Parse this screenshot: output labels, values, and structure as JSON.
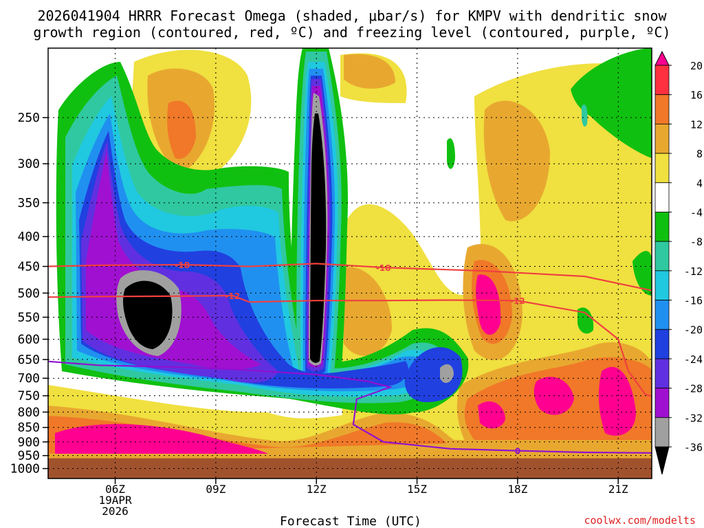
{
  "chart_data": {
    "type": "heatmap",
    "title_line1": "2026041904 HRRR Forecast Omega (shaded, μbar/s) for KMPV with dendritic snow",
    "title_line2": "growth region (contoured, red, ºC) and freezing level (contoured, purple, ºC)",
    "xlabel": "Forecast Time (UTC)",
    "credit": "coolwx.com/modelts",
    "x_ticks": [
      {
        "hour": 6,
        "label": "06Z",
        "sub1": "19APR",
        "sub2": "2026"
      },
      {
        "hour": 9,
        "label": "09Z"
      },
      {
        "hour": 12,
        "label": "12Z"
      },
      {
        "hour": 15,
        "label": "15Z"
      },
      {
        "hour": 18,
        "label": "18Z"
      },
      {
        "hour": 21,
        "label": "21Z"
      }
    ],
    "x_range_hours": [
      4.0,
      22.0
    ],
    "y_ticks": [
      250,
      300,
      350,
      400,
      450,
      500,
      550,
      600,
      650,
      700,
      750,
      800,
      850,
      900,
      950,
      1000
    ],
    "y_range_mb": [
      190,
      1040
    ],
    "surface_pressure_mb": 960,
    "colorbar": {
      "labels": [
        "20",
        "16",
        "12",
        "8",
        "4",
        "-4",
        "-8",
        "-12",
        "-16",
        "-20",
        "-24",
        "-28",
        "-32",
        "-36"
      ],
      "colors": [
        "#ff0090",
        "#ff3040",
        "#f07828",
        "#e8a830",
        "#f0e040",
        "#ffffff",
        "#10c010",
        "#30c8a0",
        "#20c8e0",
        "#2090f0",
        "#2040e0",
        "#6030e0",
        "#a010d0",
        "#a0a0a0",
        "#000000"
      ]
    },
    "omega_regions": [
      {
        "name": "upper-left-column",
        "value_range": [
          -36,
          -8
        ]
      },
      {
        "name": "12z-vertical-core",
        "value_range": [
          -36,
          -8
        ]
      },
      {
        "name": "low-level-positive-band",
        "value_range": [
          4,
          20
        ]
      },
      {
        "name": "right-side-positive",
        "value_range": [
          4,
          16
        ]
      }
    ],
    "contours": [
      {
        "name": "dgz-minus18",
        "color": "#f04040",
        "label": "-18",
        "points": [
          [
            4,
            450
          ],
          [
            5.5,
            448
          ],
          [
            8,
            447
          ],
          [
            10,
            450
          ],
          [
            12,
            445
          ],
          [
            14,
            452
          ],
          [
            17,
            458
          ],
          [
            20,
            468
          ],
          [
            22,
            495
          ]
        ]
      },
      {
        "name": "dgz-minus12",
        "color": "#f04040",
        "label": "-12",
        "points": [
          [
            4,
            508
          ],
          [
            5.5,
            507
          ],
          [
            8,
            506
          ],
          [
            9.5,
            505
          ],
          [
            10,
            518
          ],
          [
            12,
            515
          ],
          [
            14,
            515
          ],
          [
            16,
            514
          ],
          [
            18,
            515
          ],
          [
            20,
            540
          ],
          [
            21,
            600
          ],
          [
            21.3,
            680
          ],
          [
            21.8,
            745
          ],
          [
            22,
            752
          ]
        ]
      },
      {
        "name": "freezing-level-0",
        "color": "#9010d0",
        "label": "0",
        "points": [
          [
            4,
            655
          ],
          [
            5.5,
            665
          ],
          [
            8,
            670
          ],
          [
            10,
            678
          ],
          [
            12,
            690
          ],
          [
            13.5,
            708
          ],
          [
            14.2,
            725
          ],
          [
            13.2,
            760
          ],
          [
            13.1,
            840
          ],
          [
            14,
            900
          ],
          [
            16,
            925
          ],
          [
            18,
            932
          ],
          [
            20,
            938
          ],
          [
            22,
            940
          ]
        ]
      }
    ]
  }
}
